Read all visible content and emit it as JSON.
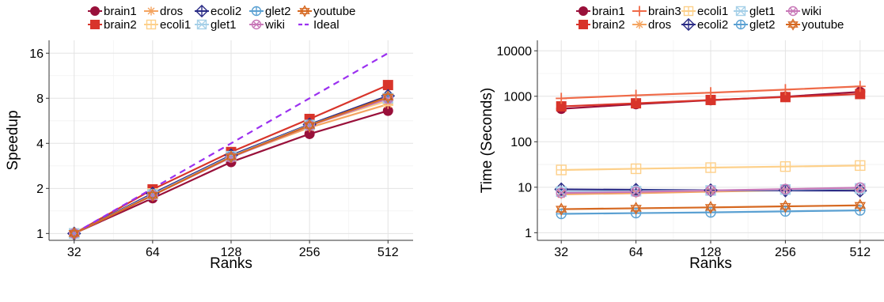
{
  "chart_data": [
    {
      "type": "line",
      "xlabel": "Ranks",
      "ylabel": "Speedup",
      "x_scale": "log2",
      "y_scale": "log2",
      "x": [
        32,
        64,
        128,
        256,
        512
      ],
      "x_tick_labels": [
        "32",
        "64",
        "128",
        "256",
        "512"
      ],
      "y_ticks": [
        1,
        2,
        4,
        8,
        16
      ],
      "y_tick_labels": [
        "1",
        "2",
        "4",
        "8",
        "16"
      ],
      "ylim": [
        0.9,
        19.5
      ],
      "grid": true,
      "legend_position": "top",
      "legend_rows": [
        [
          "brain1",
          "dros",
          "ecoli2",
          "glet2",
          "youtube"
        ],
        [
          "brain2",
          "ecoli1",
          "glet1",
          "wiki",
          "Ideal"
        ]
      ],
      "series": [
        {
          "name": "brain1",
          "color": "#99103a",
          "marker": "circle",
          "values": [
            1,
            1.72,
            3.0,
            4.62,
            6.6
          ]
        },
        {
          "name": "brain2",
          "color": "#d8342a",
          "marker": "square",
          "values": [
            1,
            1.97,
            3.5,
            5.82,
            9.8
          ]
        },
        {
          "name": "dros",
          "color": "#f4a460",
          "marker": "asterisk",
          "values": [
            1,
            1.8,
            3.25,
            5.1,
            7.3
          ]
        },
        {
          "name": "ecoli1",
          "color": "#fdd08a",
          "marker": "square-plus",
          "values": [
            1,
            1.85,
            3.28,
            5.3,
            7.7
          ]
        },
        {
          "name": "ecoli2",
          "color": "#2b2c86",
          "marker": "diamond-plus",
          "values": [
            1,
            1.85,
            3.33,
            5.35,
            8.3
          ]
        },
        {
          "name": "glet1",
          "color": "#a6d0e8",
          "marker": "square-cross",
          "values": [
            1,
            1.82,
            3.28,
            5.3,
            8.0
          ]
        },
        {
          "name": "glet2",
          "color": "#5aa0d2",
          "marker": "circle-plus",
          "values": [
            1,
            1.8,
            3.25,
            5.28,
            8.1
          ]
        },
        {
          "name": "wiki",
          "color": "#c878b8",
          "marker": "circle-cross",
          "values": [
            1,
            1.8,
            3.22,
            5.25,
            7.95
          ]
        },
        {
          "name": "youtube",
          "color": "#d66820",
          "marker": "hexagram",
          "values": [
            1,
            1.8,
            3.25,
            5.27,
            8.15
          ]
        },
        {
          "name": "Ideal",
          "color": "#9b30f0",
          "marker": "none",
          "dashed": true,
          "values": [
            1,
            2,
            4,
            8,
            16
          ]
        }
      ]
    },
    {
      "type": "line",
      "xlabel": "Ranks",
      "ylabel": "Time (Seconds)",
      "x_scale": "log2",
      "y_scale": "log10",
      "x": [
        32,
        64,
        128,
        256,
        512
      ],
      "x_tick_labels": [
        "32",
        "64",
        "128",
        "256",
        "512"
      ],
      "y_ticks": [
        1,
        10,
        100,
        1000,
        10000
      ],
      "y_tick_labels": [
        "1",
        "10",
        "100",
        "1000",
        "10000"
      ],
      "ylim": [
        0.68,
        17000
      ],
      "grid": true,
      "legend_position": "top",
      "legend_rows": [
        [
          "brain1",
          "brain3",
          "ecoli1",
          "glet1",
          "wiki"
        ],
        [
          "brain2",
          "dros",
          "ecoli2",
          "glet2",
          "youtube"
        ]
      ],
      "series": [
        {
          "name": "brain1",
          "color": "#99103a",
          "marker": "circle",
          "values": [
            530,
            670,
            820,
            980,
            1250
          ]
        },
        {
          "name": "brain2",
          "color": "#d8342a",
          "marker": "square",
          "values": [
            600,
            700,
            830,
            960,
            1120
          ]
        },
        {
          "name": "brain3",
          "color": "#ef6a48",
          "marker": "plus",
          "values": [
            900,
            1050,
            1200,
            1400,
            1650
          ]
        },
        {
          "name": "dros",
          "color": "#f4a460",
          "marker": "asterisk",
          "values": [
            7.0,
            7.4,
            8.0,
            8.6,
            9.2
          ]
        },
        {
          "name": "ecoli1",
          "color": "#fdd08a",
          "marker": "square-plus",
          "values": [
            24,
            25.5,
            27,
            28.5,
            30
          ]
        },
        {
          "name": "ecoli2",
          "color": "#2b2c86",
          "marker": "diamond-plus",
          "values": [
            9.0,
            8.8,
            8.6,
            8.5,
            8.4
          ]
        },
        {
          "name": "glet1",
          "color": "#a6d0e8",
          "marker": "square-cross",
          "values": [
            8.0,
            8.2,
            8.5,
            8.9,
            9.4
          ]
        },
        {
          "name": "glet2",
          "color": "#5aa0d2",
          "marker": "circle-plus",
          "values": [
            2.6,
            2.7,
            2.8,
            2.95,
            3.1
          ]
        },
        {
          "name": "wiki",
          "color": "#c878b8",
          "marker": "circle-cross",
          "values": [
            7.5,
            7.9,
            8.5,
            9.1,
            9.8
          ]
        },
        {
          "name": "youtube",
          "color": "#d66820",
          "marker": "hexagram",
          "values": [
            3.3,
            3.45,
            3.6,
            3.8,
            4.0
          ]
        }
      ]
    }
  ]
}
